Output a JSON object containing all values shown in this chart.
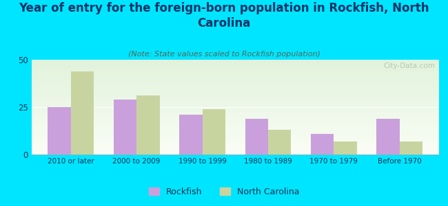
{
  "title": "Year of entry for the foreign-born population in Rockfish, North\nCarolina",
  "subtitle": "(Note: State values scaled to Rockfish population)",
  "categories": [
    "2010 or later",
    "2000 to 2009",
    "1990 to 1999",
    "1980 to 1989",
    "1970 to 1979",
    "Before 1970"
  ],
  "rockfish_values": [
    25,
    29,
    21,
    19,
    11,
    19
  ],
  "nc_values": [
    44,
    31,
    24,
    13,
    7,
    7
  ],
  "rockfish_color": "#c9a0dc",
  "nc_color": "#c8d4a0",
  "ylim": [
    0,
    50
  ],
  "yticks": [
    0,
    25,
    50
  ],
  "background_color": "#00e5ff",
  "title_color": "#003366",
  "subtitle_color": "#556655",
  "title_fontsize": 12,
  "subtitle_fontsize": 8,
  "bar_width": 0.35,
  "watermark": "City-Data.com",
  "legend_rockfish": "Rockfish",
  "legend_nc": "North Carolina"
}
